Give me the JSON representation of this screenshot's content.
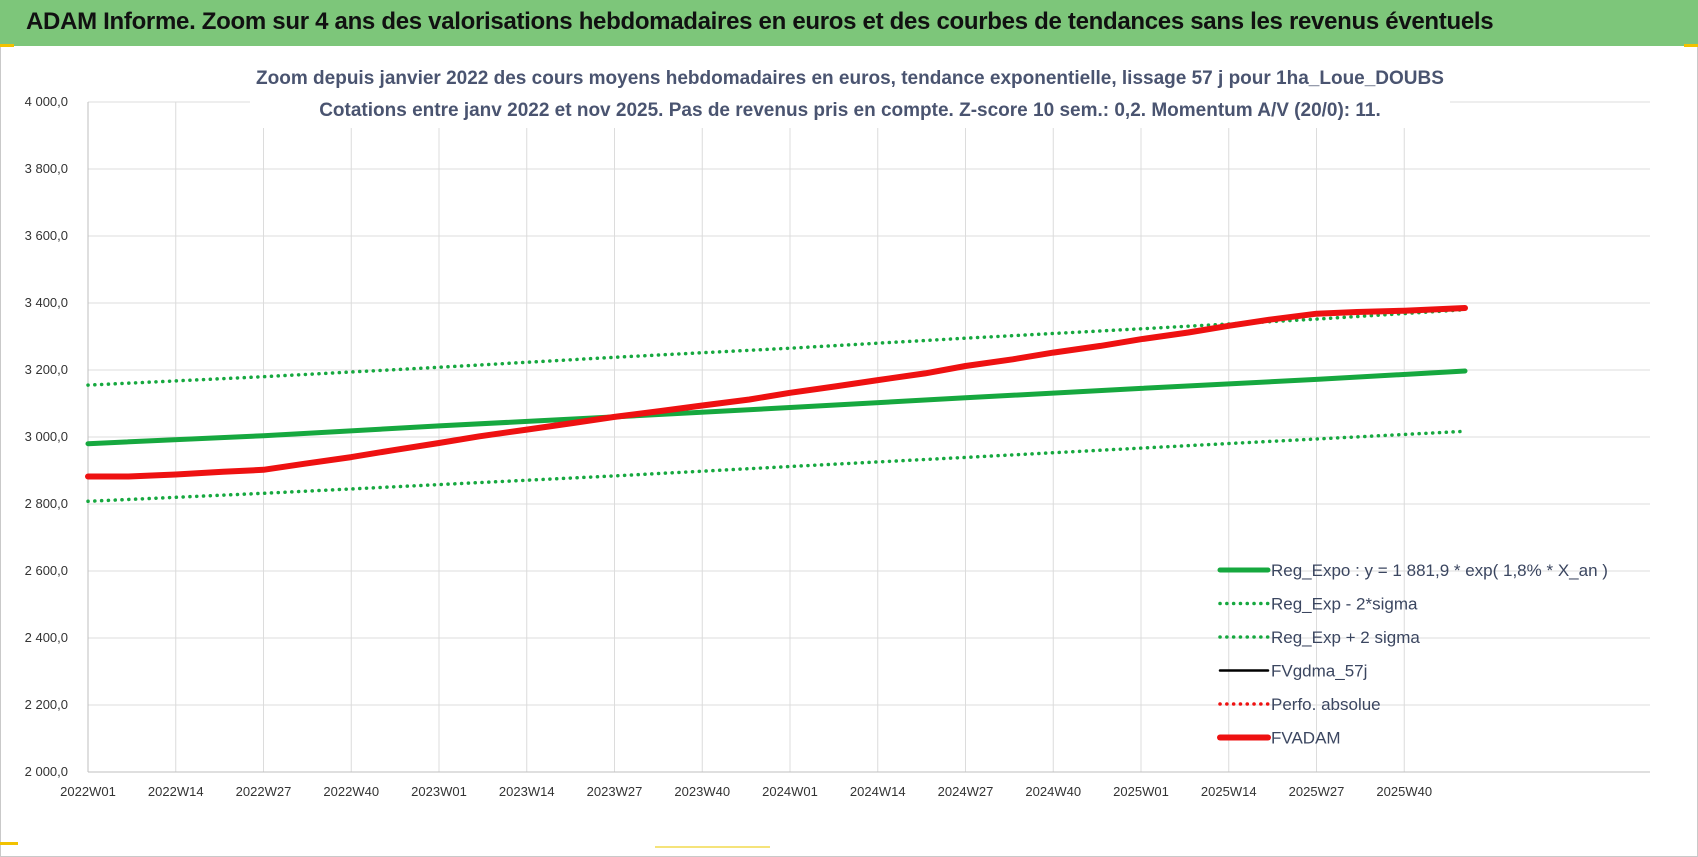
{
  "banner": {
    "title": "ADAM Informe. Zoom sur 4 ans des valorisations hebdomadaires en euros et des courbes de tendances sans les revenus éventuels"
  },
  "colors": {
    "banner_bg": "#7dc67a",
    "green": "#16a83f",
    "red": "#ee1111",
    "black": "#000000",
    "grid": "#dcdcdc",
    "title_text": "#4a5470"
  },
  "chart_data": {
    "type": "line",
    "title_line1": "Zoom depuis janvier 2022 des cours moyens hebdomadaires en euros, tendance exponentielle, lissage 57 j pour 1ha_Loue_DOUBS",
    "title_line2": "Cotations entre janv 2022 et nov 2025. Pas de revenus pris en compte. Z-score 10 sem.: 0,2. Momentum A/V (20/0): 11.",
    "xlabel": "",
    "ylabel": "",
    "ylim": [
      2000,
      4000
    ],
    "yticks": [
      "4 000,0",
      "3 800,0",
      "3 600,0",
      "3 400,0",
      "3 200,0",
      "3 000,0",
      "2 800,0",
      "2 600,0",
      "2 400,0",
      "2 200,0",
      "2 000,0"
    ],
    "ytick_values": [
      4000,
      3800,
      3600,
      3400,
      3200,
      3000,
      2800,
      2600,
      2400,
      2200,
      2000
    ],
    "x_tick_labels": [
      "2022W01",
      "2022W14",
      "2022W27",
      "2022W40",
      "2023W01",
      "2023W14",
      "2023W27",
      "2023W40",
      "2024W01",
      "2024W14",
      "2024W27",
      "2024W40",
      "2025W01",
      "2025W14",
      "2025W27",
      "2025W40"
    ],
    "x_tick_index": [
      0,
      13,
      26,
      39,
      52,
      65,
      78,
      91,
      104,
      117,
      130,
      143,
      156,
      169,
      182,
      195
    ],
    "x_count": 205,
    "grid": true,
    "legend_position": "bottom-right",
    "series": [
      {
        "name": "Reg_Expo : y = 1 881,9 * exp( 1,8% *  X_an )",
        "style": "solid",
        "color": "#16a83f",
        "x": [
          0,
          26,
          52,
          78,
          104,
          130,
          156,
          182,
          204
        ],
        "values": [
          2980,
          3004,
          3033,
          3060,
          3088,
          3117,
          3145,
          3172,
          3197
        ]
      },
      {
        "name": "Reg_Exp - 2*sigma",
        "style": "dotted",
        "color": "#16a83f",
        "x": [
          0,
          26,
          52,
          78,
          104,
          130,
          156,
          182,
          204
        ],
        "values": [
          2808,
          2832,
          2858,
          2884,
          2912,
          2939,
          2967,
          2994,
          3017
        ]
      },
      {
        "name": "Reg_Exp + 2 sigma",
        "style": "dotted",
        "color": "#16a83f",
        "x": [
          0,
          26,
          52,
          78,
          104,
          130,
          156,
          182,
          204
        ],
        "values": [
          3155,
          3180,
          3208,
          3238,
          3265,
          3295,
          3323,
          3352,
          3380
        ]
      },
      {
        "name": "FVgdma_57j",
        "style": "solid-thin",
        "color": "#000000",
        "x": [
          0,
          6,
          13,
          20,
          26,
          32,
          39,
          45,
          52,
          58,
          65,
          72,
          78,
          85,
          91,
          98,
          104,
          111,
          117,
          124,
          130,
          137,
          143,
          150,
          156,
          163,
          169,
          175,
          182,
          188,
          195,
          204
        ],
        "values": [
          2882,
          2882,
          2888,
          2896,
          2904,
          2922,
          2942,
          2960,
          2982,
          3002,
          3022,
          3042,
          3060,
          3078,
          3094,
          3112,
          3132,
          3152,
          3170,
          3190,
          3212,
          3232,
          3252,
          3272,
          3292,
          3312,
          3332,
          3350,
          3368,
          3373,
          3377,
          3385
        ]
      },
      {
        "name": "Perfo. absolue",
        "style": "dotted",
        "color": "#ee1111",
        "x": [
          0,
          6,
          13,
          20,
          26,
          32,
          39,
          45,
          52,
          58,
          65,
          72,
          78,
          85,
          91,
          98,
          104,
          111,
          117,
          124,
          130,
          137,
          143,
          150,
          156,
          163,
          169,
          175,
          182,
          188,
          195,
          204
        ],
        "values": [
          2882,
          2882,
          2888,
          2896,
          2904,
          2922,
          2942,
          2960,
          2982,
          3002,
          3022,
          3042,
          3060,
          3078,
          3094,
          3112,
          3132,
          3152,
          3170,
          3190,
          3212,
          3232,
          3252,
          3272,
          3292,
          3312,
          3332,
          3350,
          3368,
          3373,
          3377,
          3385
        ]
      },
      {
        "name": "FVADAM",
        "style": "solid-thick",
        "color": "#ee1111",
        "x": [
          0,
          6,
          13,
          20,
          26,
          32,
          39,
          45,
          52,
          58,
          65,
          72,
          78,
          85,
          91,
          98,
          104,
          111,
          117,
          124,
          130,
          137,
          143,
          150,
          156,
          163,
          169,
          175,
          182,
          188,
          195,
          204
        ],
        "values": [
          2882,
          2882,
          2888,
          2896,
          2902,
          2920,
          2940,
          2960,
          2982,
          3002,
          3022,
          3042,
          3060,
          3078,
          3094,
          3112,
          3132,
          3152,
          3170,
          3190,
          3212,
          3232,
          3252,
          3272,
          3292,
          3312,
          3332,
          3350,
          3368,
          3373,
          3377,
          3385
        ]
      }
    ]
  }
}
